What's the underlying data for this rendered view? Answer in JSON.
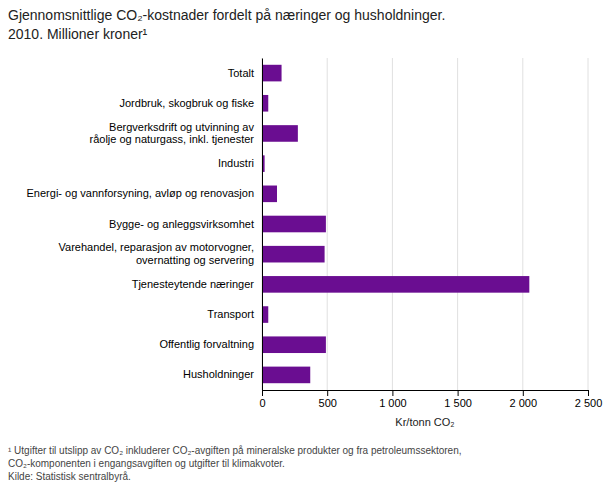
{
  "chart_data": {
    "type": "bar",
    "orientation": "horizontal",
    "title": "Gjennomsnittlige CO₂-kostnader fordelt på næringer og husholdninger.\n2010. Millioner kroner¹",
    "x_label": "Kr/tonn CO₂",
    "footnote": "¹ Utgifter til utslipp av CO₂ inkluderer CO₂-avgiften på mineralske produkter og fra petroleumssektoren,\nCO₂-komponenten i engangsavgiften og utgifter til klimakvoter.\nKilde: Statistisk sentralbyrå.",
    "categories": [
      "Totalt",
      "Jordbruk, skogbruk og fiske",
      "Bergverksdrift og utvinning av\nråolje og naturgass, inkl. tjenester",
      "Industri",
      "Energi- og vannforsyning, avløp og renovasjon",
      "Bygge- og anleggsvirksomhet",
      "Varehandel, reparasjon av motorvogner,\novernatting og servering",
      "Tjenesteytende næringer",
      "Transport",
      "Offentlig forvaltning",
      "Husholdninger"
    ],
    "values": [
      150,
      48,
      275,
      20,
      115,
      490,
      480,
      2050,
      48,
      490,
      370
    ],
    "color": "#6A0D91",
    "xlim": [
      0,
      2500
    ],
    "xticks": [
      0,
      500,
      {
        "value": 1000,
        "label": "1 000"
      },
      {
        "value": 1500,
        "label": "1 500"
      },
      {
        "value": 2000,
        "label": "2 000"
      },
      {
        "value": 2500,
        "label": "2 500"
      }
    ],
    "grid": true
  }
}
